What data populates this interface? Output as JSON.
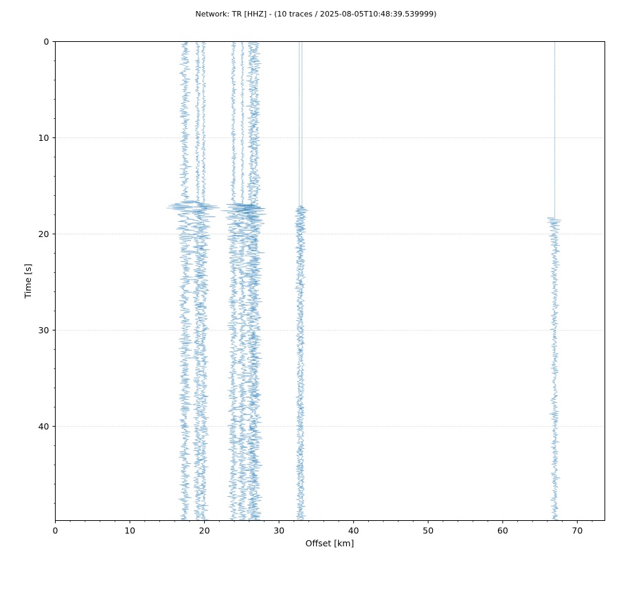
{
  "chart_data": {
    "type": "line",
    "title": "Network: TR [HHZ] - (10 traces / 2025-08-05T10:48:39.539999)",
    "xlabel": "Offset [km]",
    "ylabel": "Time [s]",
    "xlim": [
      0,
      73.7
    ],
    "ylim": [
      0,
      49.8
    ],
    "y_inverted": true,
    "x_ticks": [
      0,
      10,
      20,
      30,
      40,
      50,
      60,
      70
    ],
    "y_ticks": [
      0,
      10,
      20,
      30,
      40
    ],
    "x_minor_ticks": [
      2,
      4,
      6,
      8,
      12,
      14,
      16,
      18,
      22,
      24,
      26,
      28,
      32,
      34,
      36,
      38,
      42,
      44,
      46,
      48,
      52,
      54,
      56,
      58,
      62,
      64,
      66,
      68,
      72
    ],
    "y_minor_ticks": [
      2,
      4,
      6,
      8,
      12,
      14,
      16,
      18,
      22,
      24,
      26,
      28,
      32,
      34,
      36,
      38,
      42,
      44,
      46,
      48
    ],
    "grid": "horizontal dotted",
    "trace_color": "#1f77b4",
    "series": [
      {
        "offset_km": 17.4,
        "noise_amplitude_km": 0.6,
        "event_onset_s": 16.5,
        "event_amplitude_km": 2.8,
        "end_s": 49.8
      },
      {
        "offset_km": 19.1,
        "noise_amplitude_km": 0.3,
        "event_onset_s": 16.6,
        "event_amplitude_km": 2.2,
        "end_s": 49.8
      },
      {
        "offset_km": 19.9,
        "noise_amplitude_km": 0.25,
        "event_onset_s": 16.7,
        "event_amplitude_km": 2.2,
        "end_s": 49.8
      },
      {
        "offset_km": 23.9,
        "noise_amplitude_km": 0.3,
        "event_onset_s": 16.8,
        "event_amplitude_km": 2.4,
        "end_s": 49.8
      },
      {
        "offset_km": 25.1,
        "noise_amplitude_km": 0.2,
        "event_onset_s": 16.9,
        "event_amplitude_km": 2.6,
        "end_s": 49.8
      },
      {
        "offset_km": 26.3,
        "noise_amplitude_km": 0.5,
        "event_onset_s": 16.9,
        "event_amplitude_km": 3.0,
        "end_s": 49.8
      },
      {
        "offset_km": 26.9,
        "noise_amplitude_km": 0.55,
        "event_onset_s": 17.0,
        "event_amplitude_km": 2.8,
        "end_s": 49.8
      },
      {
        "offset_km": 32.7,
        "noise_amplitude_km": 0.02,
        "event_onset_s": 17.1,
        "event_amplitude_km": 1.4,
        "end_s": 49.8
      },
      {
        "offset_km": 33.1,
        "noise_amplitude_km": 0.02,
        "event_onset_s": 17.2,
        "event_amplitude_km": 1.2,
        "end_s": 49.8
      },
      {
        "offset_km": 67.0,
        "noise_amplitude_km": 0.02,
        "event_onset_s": 18.3,
        "event_amplitude_km": 1.6,
        "end_s": 49.8
      }
    ]
  }
}
